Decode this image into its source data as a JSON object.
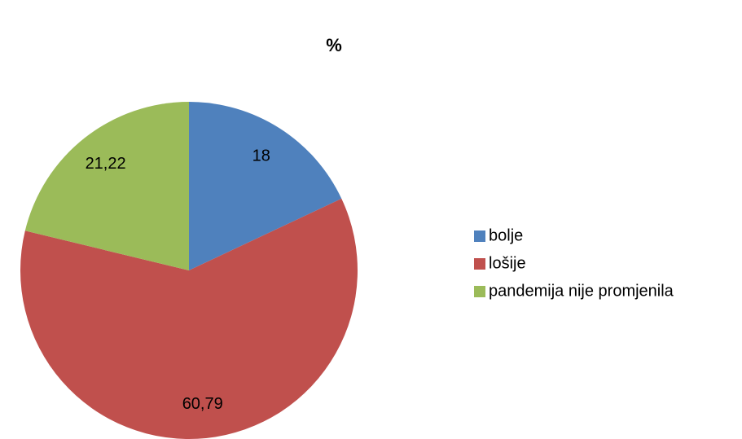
{
  "chart_data": {
    "type": "pie",
    "title": "%",
    "categories": [
      "bolje",
      "lošije",
      "pandemija nije promjenila"
    ],
    "values": [
      18,
      60.79,
      21.22
    ],
    "value_labels": [
      "18",
      "60,79",
      "21,22"
    ],
    "colors": [
      "#4f81bd",
      "#c0504d",
      "#9bbb59"
    ],
    "legend": "right"
  }
}
